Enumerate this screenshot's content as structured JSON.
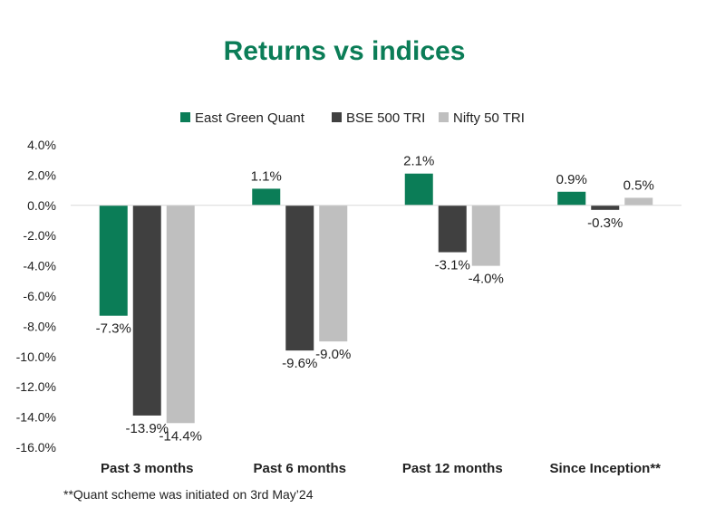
{
  "chart_data": {
    "type": "bar",
    "title": "Returns vs indices",
    "categories": [
      "Past 3 months",
      "Past 6 months",
      "Past 12 months",
      "Since Inception**"
    ],
    "series": [
      {
        "name": "East Green Quant",
        "color": "#0B7D57",
        "values": [
          -7.3,
          1.1,
          2.1,
          0.9
        ]
      },
      {
        "name": "BSE 500 TRI",
        "color": "#404040",
        "values": [
          -13.9,
          -9.6,
          -3.1,
          -0.3
        ]
      },
      {
        "name": "Nifty 50 TRI",
        "color": "#BFBFBF",
        "values": [
          -14.4,
          -9.0,
          -4.0,
          0.5
        ]
      }
    ],
    "data_labels": [
      [
        "-7.3%",
        "1.1%",
        "2.1%",
        "0.9%"
      ],
      [
        "-13.9%",
        "-9.6%",
        "-3.1%",
        "-0.3%"
      ],
      [
        "-14.4%",
        "-9.0%",
        "-4.0%",
        "0.5%"
      ]
    ],
    "ylim": [
      -16,
      4
    ],
    "yticks": [
      4,
      2,
      0,
      -2,
      -4,
      -6,
      -8,
      -10,
      -12,
      -14,
      -16
    ],
    "ytick_labels": [
      "4.0%",
      "2.0%",
      "0.0%",
      "-2.0%",
      "-4.0%",
      "-6.0%",
      "-8.0%",
      "-10.0%",
      "-12.0%",
      "-14.0%",
      "-16.0%"
    ],
    "title_color": "#0B7D57",
    "legend_position": "top-center",
    "grid": false,
    "xlabel": "",
    "ylabel": ""
  },
  "footnote": "**Quant scheme was initiated on 3rd May’24"
}
